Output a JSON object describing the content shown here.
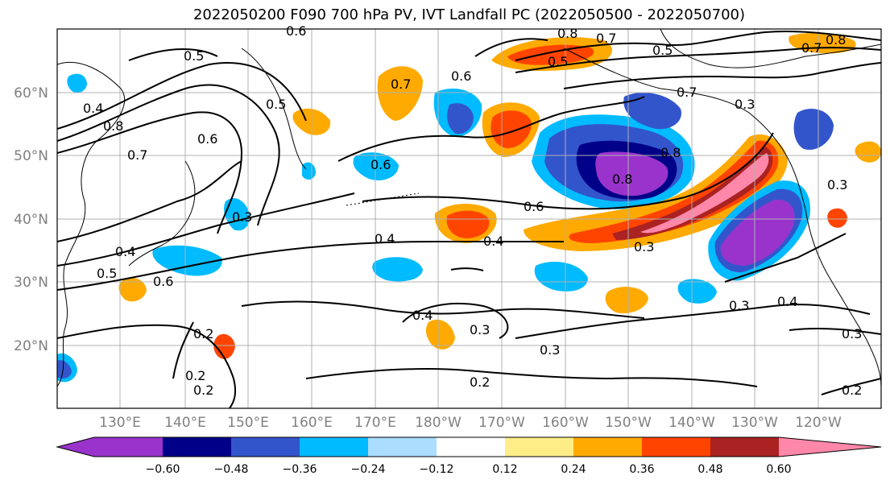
{
  "title": "2022050200 F090 700 hPa PV, IVT Landfall PC (2022050500 - 2022050700)",
  "lat_labels": [
    "60°N",
    "50°N",
    "40°N",
    "30°N",
    "20°N"
  ],
  "lon_labels": [
    "130°E",
    "140°E",
    "150°E",
    "160°E",
    "170°E",
    "180°W",
    "170°W",
    "160°W",
    "150°W",
    "140°W",
    "130°W",
    "120°W"
  ],
  "colorbar": {
    "colors": [
      "#9933cc",
      "#000088",
      "#3355cc",
      "#00bbff",
      "#aaddff",
      "#ffffff",
      "#ffee88",
      "#ffaa00",
      "#ff4400",
      "#aa2222",
      "#ff88aa"
    ],
    "tick_labels": [
      "−0.60",
      "−0.48",
      "−0.36",
      "−0.24",
      "−0.12",
      "0.12",
      "0.24",
      "0.36",
      "0.48",
      "0.60"
    ]
  },
  "contour_labels": [
    "0.6",
    "0.5",
    "0.4",
    "0.8",
    "0.7",
    "0.6",
    "0.5",
    "0.4",
    "0.3",
    "0.7",
    "0.6",
    "0.8",
    "0.7",
    "0.5",
    "0.8",
    "0.7",
    "0.5",
    "0.7",
    "0.3",
    "0.6",
    "0.8",
    "0.8",
    "0.6",
    "0.4",
    "0.4",
    "0.3",
    "0.3",
    "0.3",
    "0.4",
    "0.3",
    "0.5",
    "0.6",
    "0.2",
    "0.2",
    "0.2",
    "0.4",
    "0.3",
    "0.3",
    "0.2",
    "0.2"
  ]
}
